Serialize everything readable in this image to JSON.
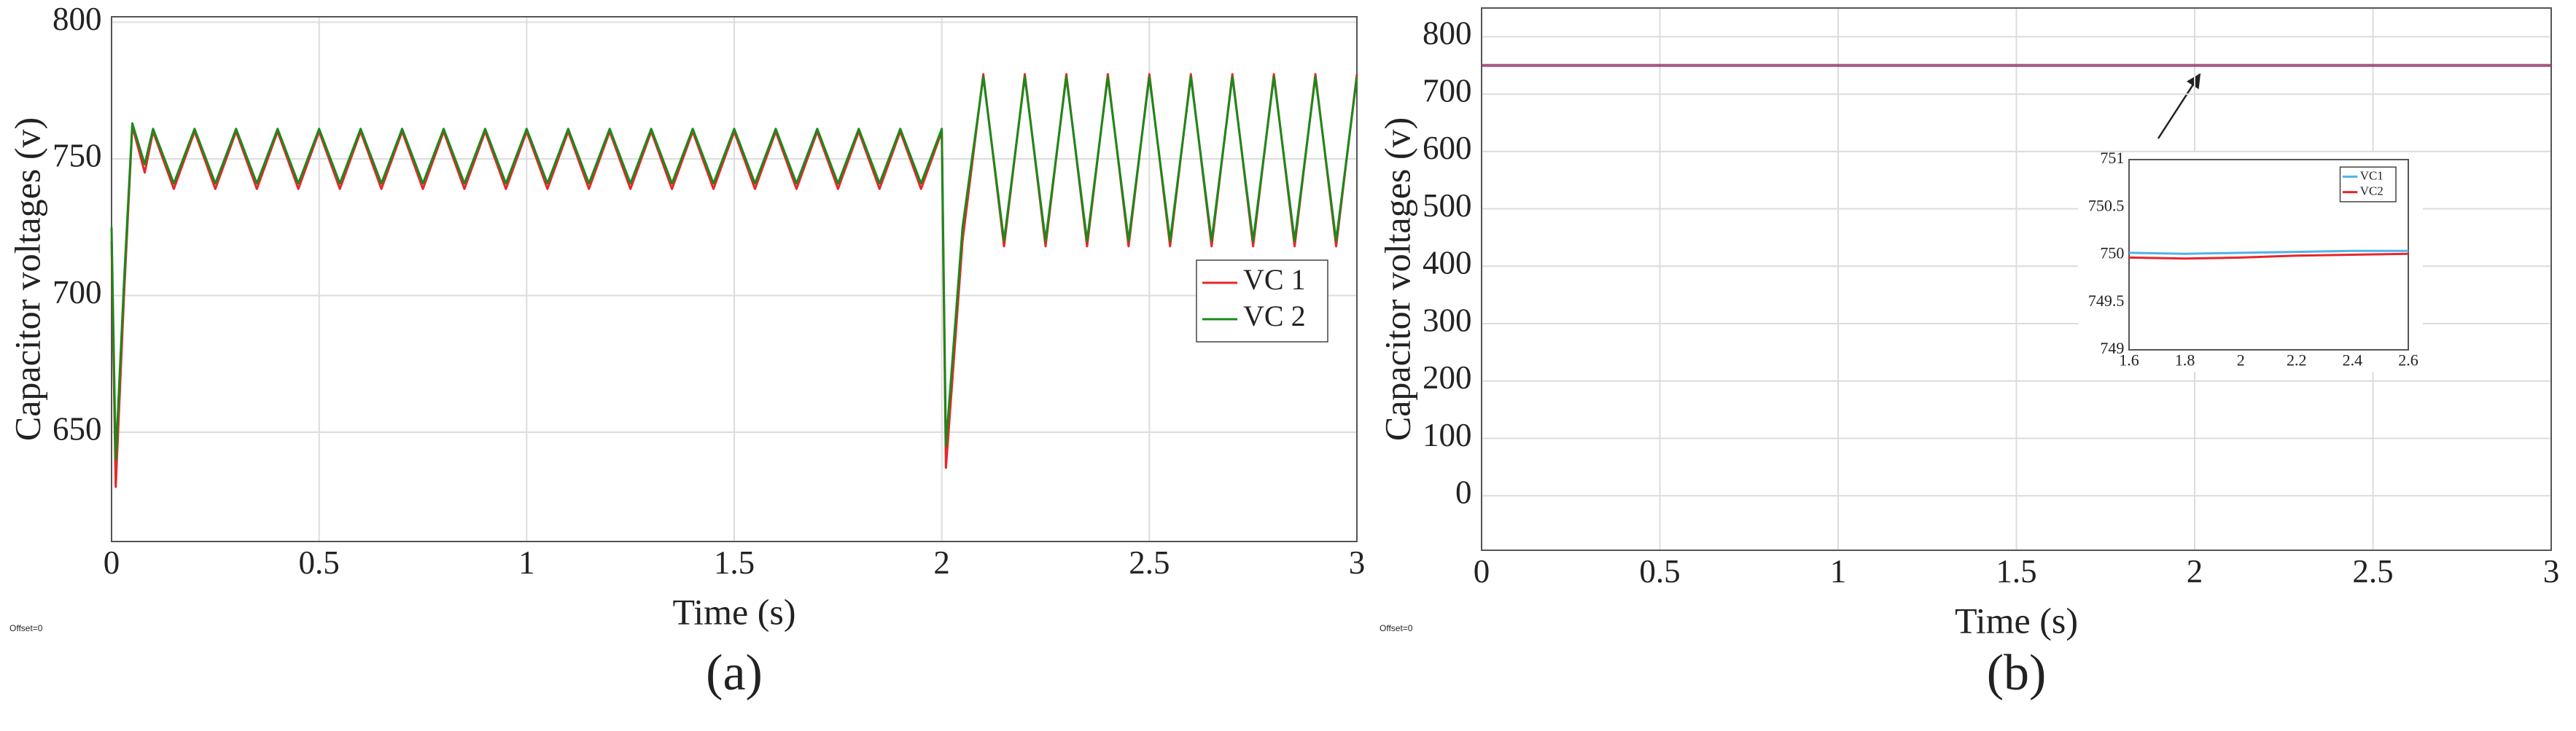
{
  "chart_data": [
    {
      "type": "line",
      "xlabel": "Time (s)",
      "ylabel": "Capacitor voltages (v)",
      "label": "(a)",
      "annotation": "Offset=0",
      "xlim": [
        0,
        3
      ],
      "xticks": [
        0,
        0.5,
        1,
        1.5,
        2,
        2.5,
        3
      ],
      "ylim": [
        610,
        802
      ],
      "yticks": [
        650,
        700,
        750,
        800
      ],
      "grid": true,
      "legend": "center right",
      "x": [
        0,
        0.01,
        0.03,
        0.05,
        0.08,
        0.1,
        0.15,
        0.2,
        0.25,
        0.3,
        0.35,
        0.4,
        0.45,
        0.5,
        0.55,
        0.6,
        0.65,
        0.7,
        0.75,
        0.8,
        0.85,
        0.9,
        0.95,
        1,
        1.05,
        1.1,
        1.15,
        1.2,
        1.25,
        1.3,
        1.35,
        1.4,
        1.45,
        1.5,
        1.55,
        1.6,
        1.65,
        1.7,
        1.75,
        1.8,
        1.85,
        1.9,
        1.95,
        2,
        2.01,
        2.05,
        2.1,
        2.15,
        2.2,
        2.25,
        2.3,
        2.35,
        2.4,
        2.45,
        2.5,
        2.55,
        2.6,
        2.65,
        2.7,
        2.75,
        2.8,
        2.85,
        2.9,
        2.95,
        3
      ],
      "series": [
        {
          "name": "VC 1",
          "color": "#e8262a",
          "values": [
            720,
            630,
            700,
            762,
            745,
            760,
            739,
            760,
            739,
            760,
            739,
            760,
            739,
            760,
            739,
            760,
            739,
            760,
            739,
            760,
            739,
            760,
            739,
            760,
            739,
            760,
            739,
            760,
            739,
            760,
            739,
            760,
            739,
            760,
            739,
            760,
            739,
            760,
            739,
            760,
            739,
            760,
            739,
            760,
            637,
            720,
            781,
            718,
            781,
            718,
            781,
            718,
            781,
            718,
            781,
            718,
            781,
            718,
            781,
            718,
            781,
            718,
            781,
            718,
            781
          ]
        },
        {
          "name": "VC 2",
          "color": "#1a8a1a",
          "values": [
            725,
            640,
            705,
            763,
            748,
            761,
            741,
            761,
            741,
            761,
            741,
            761,
            741,
            761,
            741,
            761,
            741,
            761,
            741,
            761,
            741,
            761,
            741,
            761,
            741,
            761,
            741,
            761,
            741,
            761,
            741,
            761,
            741,
            761,
            741,
            761,
            741,
            761,
            741,
            761,
            741,
            761,
            741,
            761,
            645,
            725,
            780,
            720,
            780,
            720,
            780,
            720,
            780,
            720,
            780,
            720,
            780,
            720,
            780,
            720,
            780,
            720,
            780,
            720,
            780
          ]
        }
      ]
    },
    {
      "type": "line",
      "xlabel": "Time (s)",
      "ylabel": "Capacitor voltages (v)",
      "label": "(b)",
      "annotation": "Offset=0",
      "xlim": [
        0,
        3
      ],
      "xticks": [
        0,
        0.5,
        1,
        1.5,
        2,
        2.5,
        3
      ],
      "ylim": [
        -95,
        850
      ],
      "yticks": [
        0,
        100,
        200,
        300,
        400,
        500,
        600,
        700,
        800
      ],
      "grid": true,
      "x": [
        0,
        3
      ],
      "series": [
        {
          "color": "#4a7ad0",
          "values": [
            750,
            750
          ]
        },
        {
          "color": "#b02040",
          "values": [
            750,
            750
          ]
        }
      ]
    },
    {
      "type": "line",
      "xlim": [
        1.6,
        2.6
      ],
      "xticks": [
        1.6,
        1.8,
        2,
        2.2,
        2.4,
        2.6
      ],
      "ylim": [
        749,
        751
      ],
      "yticks": [
        749,
        749.5,
        750,
        750.5,
        751
      ],
      "grid": false,
      "legend": "upper right",
      "x": [
        1.6,
        1.8,
        2,
        2.2,
        2.4,
        2.6
      ],
      "series": [
        {
          "name": "VC1",
          "color": "#4fb3e8",
          "values": [
            750.02,
            750.01,
            750.02,
            750.03,
            750.04,
            750.04
          ]
        },
        {
          "name": "VC2",
          "color": "#e8262a",
          "values": [
            749.97,
            749.96,
            749.97,
            749.99,
            750,
            750.01
          ]
        }
      ]
    }
  ]
}
